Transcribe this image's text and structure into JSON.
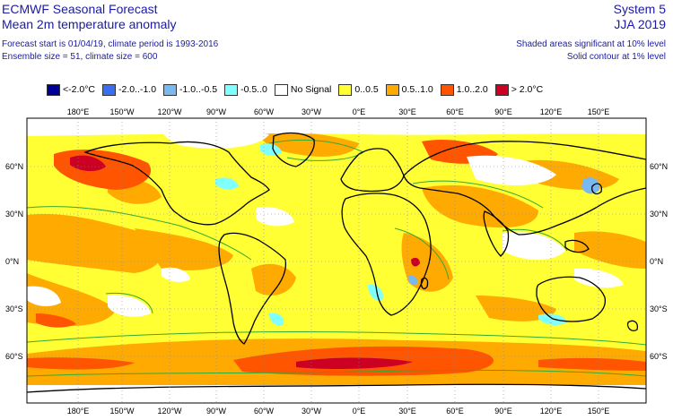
{
  "header": {
    "product": "ECMWF Seasonal Forecast",
    "variable": "Mean 2m temperature anomaly",
    "forecast_info": "Forecast start is 01/04/19, climate period is 1993-2016",
    "ensemble_info": "Ensemble size = 51, climate size = 600",
    "system": "System 5",
    "season": "JJA 2019",
    "significance_note": "Shaded areas significant at 10% level",
    "contour_note": "Solid contour at 1% level"
  },
  "legend": [
    {
      "label": "<-2.0°C",
      "color": "#000099"
    },
    {
      "label": "-2.0..-1.0",
      "color": "#3a6ef0"
    },
    {
      "label": "-1.0..-0.5",
      "color": "#7ab8f0"
    },
    {
      "label": "-0.5..0",
      "color": "#80ffff"
    },
    {
      "label": "No Signal",
      "color": "#ffffff"
    },
    {
      "label": "0..0.5",
      "color": "#ffff33"
    },
    {
      "label": "0.5..1.0",
      "color": "#ffaa00"
    },
    {
      "label": "1.0..2.0",
      "color": "#ff5500"
    },
    {
      "label": "> 2.0°C",
      "color": "#cc0022"
    }
  ],
  "axes": {
    "lon_labels": [
      "180°E",
      "150°W",
      "120°W",
      "90°W",
      "60°W",
      "30°W",
      "0°E",
      "30°E",
      "60°E",
      "90°E",
      "120°E",
      "150°E"
    ],
    "lat_labels": [
      "60°N",
      "30°N",
      "0°N",
      "30°S",
      "60°S"
    ]
  }
}
